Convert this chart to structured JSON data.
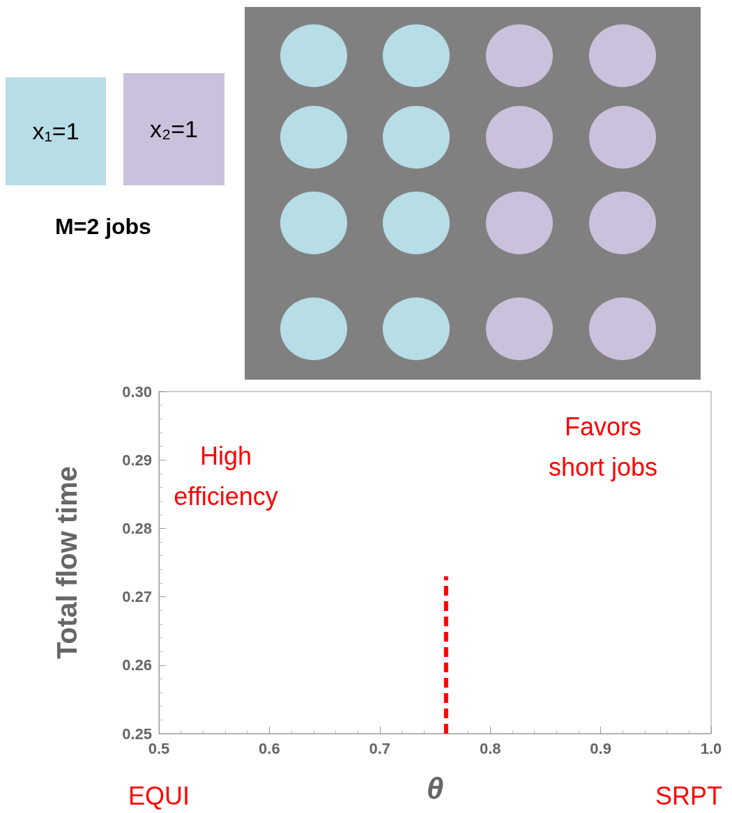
{
  "chart_data": {
    "type": "line",
    "xlabel": "θ",
    "ylabel": "Total flow time",
    "xlim": [
      0.5,
      1.0
    ],
    "xticks": [
      0.5,
      0.6,
      0.7,
      0.8,
      0.9,
      {
        "value": 1.0,
        "label": "1.0"
      }
    ],
    "ylim": [
      0.25,
      0.3
    ],
    "yticks": [
      0.25,
      0.26,
      0.27,
      0.28,
      0.29,
      {
        "value": 0.3,
        "label": "0.30"
      }
    ],
    "series": [
      {
        "x": [
          0.76,
          0.76
        ],
        "values": [
          0.25,
          0.273
        ],
        "color": "#ff0000"
      }
    ],
    "line_style": "dashed",
    "marker": "none",
    "grid": false,
    "annotations": [
      "High efficiency",
      "Favors short jobs",
      "EQUI",
      "SRPT",
      "x₁=1",
      "x₂=1",
      "M=2 jobs"
    ]
  }
}
